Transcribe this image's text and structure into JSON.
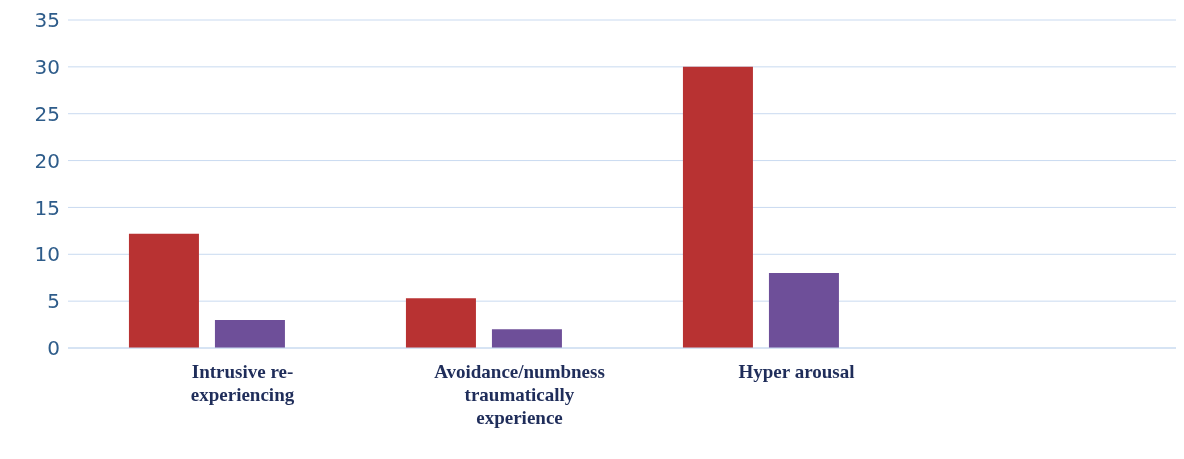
{
  "chart_data": {
    "type": "bar",
    "categories": [
      "Intrusive re-experiencing",
      "Avoidance/numbness traumatically experience",
      "Hyper arousal",
      null
    ],
    "series": [
      {
        "color": "#b83232",
        "values": [
          12.2,
          5.3,
          30,
          null
        ]
      },
      {
        "color": "#6e4f99",
        "values": [
          3,
          2,
          8,
          null
        ]
      }
    ],
    "ylim": [
      0,
      35
    ],
    "yticks": [
      0,
      5,
      10,
      15,
      20,
      25,
      30,
      35
    ],
    "grid": "y",
    "legend": false
  }
}
